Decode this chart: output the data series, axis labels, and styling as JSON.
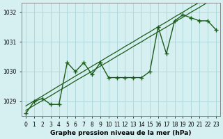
{
  "xlabel": "Graphe pression niveau de la mer (hPa)",
  "background_color": "#d6eff0",
  "grid_color": "#b0d8da",
  "line_color": "#1a5c1a",
  "x_values": [
    0,
    1,
    2,
    3,
    4,
    5,
    6,
    7,
    8,
    9,
    10,
    11,
    12,
    13,
    14,
    15,
    16,
    17,
    18,
    19,
    20,
    21,
    22,
    23
  ],
  "pressure": [
    1028.6,
    1029.0,
    1029.1,
    1028.9,
    1028.9,
    1030.3,
    1030.0,
    1030.3,
    1029.9,
    1030.3,
    1029.8,
    1029.8,
    1029.8,
    1029.8,
    1029.8,
    1030.0,
    1031.5,
    1030.6,
    1031.7,
    1031.9,
    1031.8,
    1031.7,
    1031.7,
    1031.4
  ],
  "line2": [
    1028.85,
    1029.02,
    1029.18,
    1029.35,
    1029.52,
    1029.68,
    1029.85,
    1030.01,
    1030.18,
    1030.34,
    1030.51,
    1030.67,
    1030.84,
    1031.0,
    1031.17,
    1031.33,
    1031.5,
    1031.66,
    1031.83,
    1031.99,
    1032.16,
    1032.32,
    1032.49,
    1032.65
  ],
  "line3": [
    1028.7,
    1028.87,
    1029.03,
    1029.19,
    1029.36,
    1029.52,
    1029.69,
    1029.85,
    1030.01,
    1030.18,
    1030.34,
    1030.51,
    1030.67,
    1030.84,
    1031.0,
    1031.17,
    1031.33,
    1031.49,
    1031.66,
    1031.82,
    1031.99,
    1032.15,
    1032.32,
    1032.48
  ],
  "ylim_min": 1028.5,
  "ylim_max": 1032.3,
  "yticks": [
    1029,
    1030,
    1031,
    1032
  ]
}
